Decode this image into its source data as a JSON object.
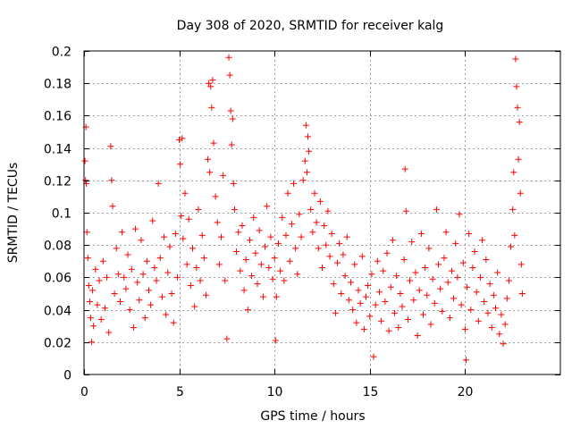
{
  "chart_data": {
    "type": "scatter",
    "title": "Day 308 of 2020, SRMTID for receiver kalg",
    "xlabel": "GPS time / hours",
    "ylabel": "SRMTID / TECUs",
    "xlim": [
      0,
      25
    ],
    "ylim": [
      0,
      0.2
    ],
    "x_ticks": [
      0,
      5,
      10,
      15,
      20
    ],
    "x_tick_labels": [
      "0",
      "5",
      "10",
      "15",
      "20"
    ],
    "y_ticks": [
      0,
      0.02,
      0.04,
      0.06,
      0.08,
      0.1,
      0.12,
      0.14,
      0.16,
      0.18,
      0.2
    ],
    "y_tick_labels": [
      "0",
      "0.02",
      "0.04",
      "0.06",
      "0.08",
      "0.1",
      "0.12",
      "0.14",
      "0.16",
      "0.18",
      "0.2"
    ],
    "grid": true,
    "marker": "plus",
    "marker_color": "#ff0000",
    "series": [
      {
        "name": "SRMTID",
        "points": [
          [
            0.05,
            0.132
          ],
          [
            0.08,
            0.12
          ],
          [
            0.1,
            0.153
          ],
          [
            0.12,
            0.118
          ],
          [
            0.15,
            0.088
          ],
          [
            0.2,
            0.072
          ],
          [
            0.25,
            0.055
          ],
          [
            0.3,
            0.045
          ],
          [
            0.35,
            0.035
          ],
          [
            0.4,
            0.02
          ],
          [
            0.45,
            0.052
          ],
          [
            0.5,
            0.03
          ],
          [
            0.6,
            0.065
          ],
          [
            0.7,
            0.043
          ],
          [
            0.8,
            0.058
          ],
          [
            0.9,
            0.034
          ],
          [
            1.0,
            0.07
          ],
          [
            1.1,
            0.041
          ],
          [
            1.2,
            0.06
          ],
          [
            1.3,
            0.026
          ],
          [
            1.4,
            0.141
          ],
          [
            1.45,
            0.12
          ],
          [
            1.5,
            0.104
          ],
          [
            1.6,
            0.05
          ],
          [
            1.7,
            0.078
          ],
          [
            1.8,
            0.062
          ],
          [
            1.9,
            0.045
          ],
          [
            2.0,
            0.088
          ],
          [
            2.1,
            0.06
          ],
          [
            2.2,
            0.053
          ],
          [
            2.3,
            0.074
          ],
          [
            2.4,
            0.04
          ],
          [
            2.5,
            0.065
          ],
          [
            2.6,
            0.029
          ],
          [
            2.7,
            0.09
          ],
          [
            2.8,
            0.057
          ],
          [
            2.9,
            0.046
          ],
          [
            3.0,
            0.083
          ],
          [
            3.1,
            0.062
          ],
          [
            3.2,
            0.035
          ],
          [
            3.3,
            0.07
          ],
          [
            3.4,
            0.052
          ],
          [
            3.5,
            0.043
          ],
          [
            3.6,
            0.095
          ],
          [
            3.7,
            0.066
          ],
          [
            3.8,
            0.058
          ],
          [
            3.9,
            0.118
          ],
          [
            4.0,
            0.072
          ],
          [
            4.1,
            0.048
          ],
          [
            4.2,
            0.085
          ],
          [
            4.3,
            0.037
          ],
          [
            4.4,
            0.063
          ],
          [
            4.5,
            0.079
          ],
          [
            4.6,
            0.05
          ],
          [
            4.7,
            0.032
          ],
          [
            4.8,
            0.087
          ],
          [
            4.9,
            0.06
          ],
          [
            5.0,
            0.145
          ],
          [
            5.05,
            0.13
          ],
          [
            5.1,
            0.098
          ],
          [
            5.15,
            0.146
          ],
          [
            5.2,
            0.084
          ],
          [
            5.3,
            0.112
          ],
          [
            5.4,
            0.068
          ],
          [
            5.5,
            0.096
          ],
          [
            5.6,
            0.055
          ],
          [
            5.7,
            0.078
          ],
          [
            5.8,
            0.042
          ],
          [
            5.9,
            0.066
          ],
          [
            6.0,
            0.102
          ],
          [
            6.1,
            0.058
          ],
          [
            6.2,
            0.086
          ],
          [
            6.3,
            0.072
          ],
          [
            6.4,
            0.049
          ],
          [
            6.5,
            0.133
          ],
          [
            6.55,
            0.18
          ],
          [
            6.6,
            0.125
          ],
          [
            6.65,
            0.178
          ],
          [
            6.7,
            0.165
          ],
          [
            6.75,
            0.182
          ],
          [
            6.8,
            0.143
          ],
          [
            6.9,
            0.11
          ],
          [
            7.0,
            0.094
          ],
          [
            7.1,
            0.068
          ],
          [
            7.2,
            0.085
          ],
          [
            7.3,
            0.123
          ],
          [
            7.4,
            0.058
          ],
          [
            7.5,
            0.022
          ],
          [
            7.6,
            0.196
          ],
          [
            7.65,
            0.185
          ],
          [
            7.7,
            0.163
          ],
          [
            7.75,
            0.142
          ],
          [
            7.8,
            0.158
          ],
          [
            7.85,
            0.118
          ],
          [
            7.9,
            0.102
          ],
          [
            8.0,
            0.076
          ],
          [
            8.1,
            0.088
          ],
          [
            8.2,
            0.064
          ],
          [
            8.3,
            0.092
          ],
          [
            8.4,
            0.052
          ],
          [
            8.5,
            0.071
          ],
          [
            8.6,
            0.04
          ],
          [
            8.7,
            0.083
          ],
          [
            8.8,
            0.061
          ],
          [
            8.9,
            0.097
          ],
          [
            9.0,
            0.075
          ],
          [
            9.1,
            0.056
          ],
          [
            9.2,
            0.089
          ],
          [
            9.3,
            0.068
          ],
          [
            9.4,
            0.048
          ],
          [
            9.5,
            0.079
          ],
          [
            9.6,
            0.104
          ],
          [
            9.7,
            0.066
          ],
          [
            9.8,
            0.085
          ],
          [
            9.9,
            0.059
          ],
          [
            10.0,
            0.072
          ],
          [
            10.05,
            0.021
          ],
          [
            10.1,
            0.048
          ],
          [
            10.2,
            0.081
          ],
          [
            10.3,
            0.064
          ],
          [
            10.4,
            0.097
          ],
          [
            10.5,
            0.058
          ],
          [
            10.6,
            0.086
          ],
          [
            10.7,
            0.112
          ],
          [
            10.8,
            0.07
          ],
          [
            10.9,
            0.093
          ],
          [
            11.0,
            0.118
          ],
          [
            11.1,
            0.078
          ],
          [
            11.2,
            0.062
          ],
          [
            11.3,
            0.099
          ],
          [
            11.4,
            0.085
          ],
          [
            11.5,
            0.12
          ],
          [
            11.6,
            0.132
          ],
          [
            11.65,
            0.154
          ],
          [
            11.7,
            0.125
          ],
          [
            11.75,
            0.147
          ],
          [
            11.8,
            0.138
          ],
          [
            11.9,
            0.102
          ],
          [
            12.0,
            0.088
          ],
          [
            12.1,
            0.112
          ],
          [
            12.2,
            0.094
          ],
          [
            12.3,
            0.078
          ],
          [
            12.4,
            0.107
          ],
          [
            12.5,
            0.066
          ],
          [
            12.6,
            0.092
          ],
          [
            12.7,
            0.08
          ],
          [
            12.8,
            0.101
          ],
          [
            12.9,
            0.073
          ],
          [
            13.0,
            0.087
          ],
          [
            13.1,
            0.056
          ],
          [
            13.2,
            0.038
          ],
          [
            13.3,
            0.069
          ],
          [
            13.4,
            0.081
          ],
          [
            13.5,
            0.05
          ],
          [
            13.6,
            0.074
          ],
          [
            13.7,
            0.061
          ],
          [
            13.8,
            0.085
          ],
          [
            13.9,
            0.046
          ],
          [
            14.0,
            0.057
          ],
          [
            14.1,
            0.04
          ],
          [
            14.2,
            0.068
          ],
          [
            14.3,
            0.032
          ],
          [
            14.4,
            0.052
          ],
          [
            14.5,
            0.044
          ],
          [
            14.6,
            0.073
          ],
          [
            14.7,
            0.028
          ],
          [
            14.8,
            0.048
          ],
          [
            14.9,
            0.055
          ],
          [
            15.0,
            0.036
          ],
          [
            15.1,
            0.062
          ],
          [
            15.2,
            0.011
          ],
          [
            15.3,
            0.043
          ],
          [
            15.4,
            0.07
          ],
          [
            15.5,
            0.051
          ],
          [
            15.6,
            0.033
          ],
          [
            15.7,
            0.064
          ],
          [
            15.8,
            0.045
          ],
          [
            15.9,
            0.075
          ],
          [
            16.0,
            0.027
          ],
          [
            16.1,
            0.054
          ],
          [
            16.2,
            0.083
          ],
          [
            16.3,
            0.038
          ],
          [
            16.4,
            0.061
          ],
          [
            16.5,
            0.029
          ],
          [
            16.6,
            0.05
          ],
          [
            16.7,
            0.042
          ],
          [
            16.8,
            0.071
          ],
          [
            16.85,
            0.127
          ],
          [
            16.9,
            0.101
          ],
          [
            17.0,
            0.034
          ],
          [
            17.1,
            0.058
          ],
          [
            17.2,
            0.082
          ],
          [
            17.3,
            0.046
          ],
          [
            17.4,
            0.063
          ],
          [
            17.5,
            0.024
          ],
          [
            17.6,
            0.052
          ],
          [
            17.7,
            0.087
          ],
          [
            17.8,
            0.037
          ],
          [
            17.9,
            0.066
          ],
          [
            18.0,
            0.049
          ],
          [
            18.1,
            0.078
          ],
          [
            18.2,
            0.031
          ],
          [
            18.3,
            0.059
          ],
          [
            18.4,
            0.044
          ],
          [
            18.5,
            0.102
          ],
          [
            18.6,
            0.068
          ],
          [
            18.7,
            0.053
          ],
          [
            18.8,
            0.039
          ],
          [
            18.9,
            0.072
          ],
          [
            19.0,
            0.088
          ],
          [
            19.1,
            0.057
          ],
          [
            19.2,
            0.035
          ],
          [
            19.3,
            0.064
          ],
          [
            19.4,
            0.047
          ],
          [
            19.5,
            0.081
          ],
          [
            19.6,
            0.06
          ],
          [
            19.7,
            0.099
          ],
          [
            19.8,
            0.043
          ],
          [
            19.9,
            0.069
          ],
          [
            20.0,
            0.028
          ],
          [
            20.05,
            0.009
          ],
          [
            20.1,
            0.054
          ],
          [
            20.2,
            0.087
          ],
          [
            20.3,
            0.04
          ],
          [
            20.4,
            0.066
          ],
          [
            20.5,
            0.076
          ],
          [
            20.6,
            0.051
          ],
          [
            20.7,
            0.033
          ],
          [
            20.8,
            0.06
          ],
          [
            20.9,
            0.083
          ],
          [
            21.0,
            0.045
          ],
          [
            21.1,
            0.071
          ],
          [
            21.2,
            0.038
          ],
          [
            21.3,
            0.056
          ],
          [
            21.4,
            0.029
          ],
          [
            21.5,
            0.049
          ],
          [
            21.6,
            0.041
          ],
          [
            21.7,
            0.063
          ],
          [
            21.8,
            0.025
          ],
          [
            21.9,
            0.037
          ],
          [
            22.0,
            0.019
          ],
          [
            22.1,
            0.031
          ],
          [
            22.2,
            0.047
          ],
          [
            22.3,
            0.058
          ],
          [
            22.4,
            0.079
          ],
          [
            22.5,
            0.102
          ],
          [
            22.55,
            0.125
          ],
          [
            22.6,
            0.086
          ],
          [
            22.65,
            0.195
          ],
          [
            22.7,
            0.178
          ],
          [
            22.75,
            0.165
          ],
          [
            22.8,
            0.133
          ],
          [
            22.85,
            0.156
          ],
          [
            22.9,
            0.112
          ],
          [
            22.95,
            0.068
          ],
          [
            23.0,
            0.05
          ]
        ]
      }
    ]
  }
}
